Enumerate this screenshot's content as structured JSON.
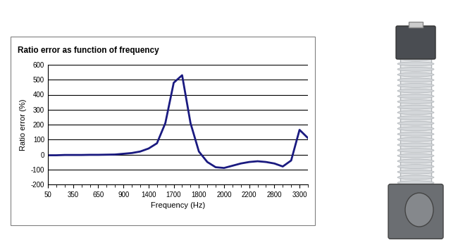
{
  "chart_data": {
    "type": "line",
    "title": "Ratio error as function of frequency",
    "x_label": "Frequency (Hz)",
    "y_label": "Ratio error (%)",
    "categories": [
      "50",
      null,
      null,
      "350",
      null,
      null,
      "650",
      null,
      null,
      "900",
      null,
      null,
      "1400",
      null,
      null,
      "1700",
      null,
      null,
      "1800",
      null,
      null,
      "2000",
      null,
      null,
      "2200",
      null,
      null,
      "2800",
      null,
      null,
      "3300",
      null
    ],
    "values": [
      -5,
      -5,
      -3,
      -3,
      -3,
      -2,
      -2,
      -1,
      0,
      5,
      10,
      20,
      40,
      75,
      210,
      480,
      530,
      210,
      20,
      -50,
      -85,
      -90,
      -75,
      -60,
      -50,
      -45,
      -50,
      -60,
      -80,
      -40,
      165,
      110
    ],
    "color": "#1a1a80",
    "ylim": [
      -200,
      600
    ],
    "yticks": [
      -200,
      -100,
      0,
      100,
      200,
      300,
      400,
      500,
      600
    ],
    "grid": true
  }
}
